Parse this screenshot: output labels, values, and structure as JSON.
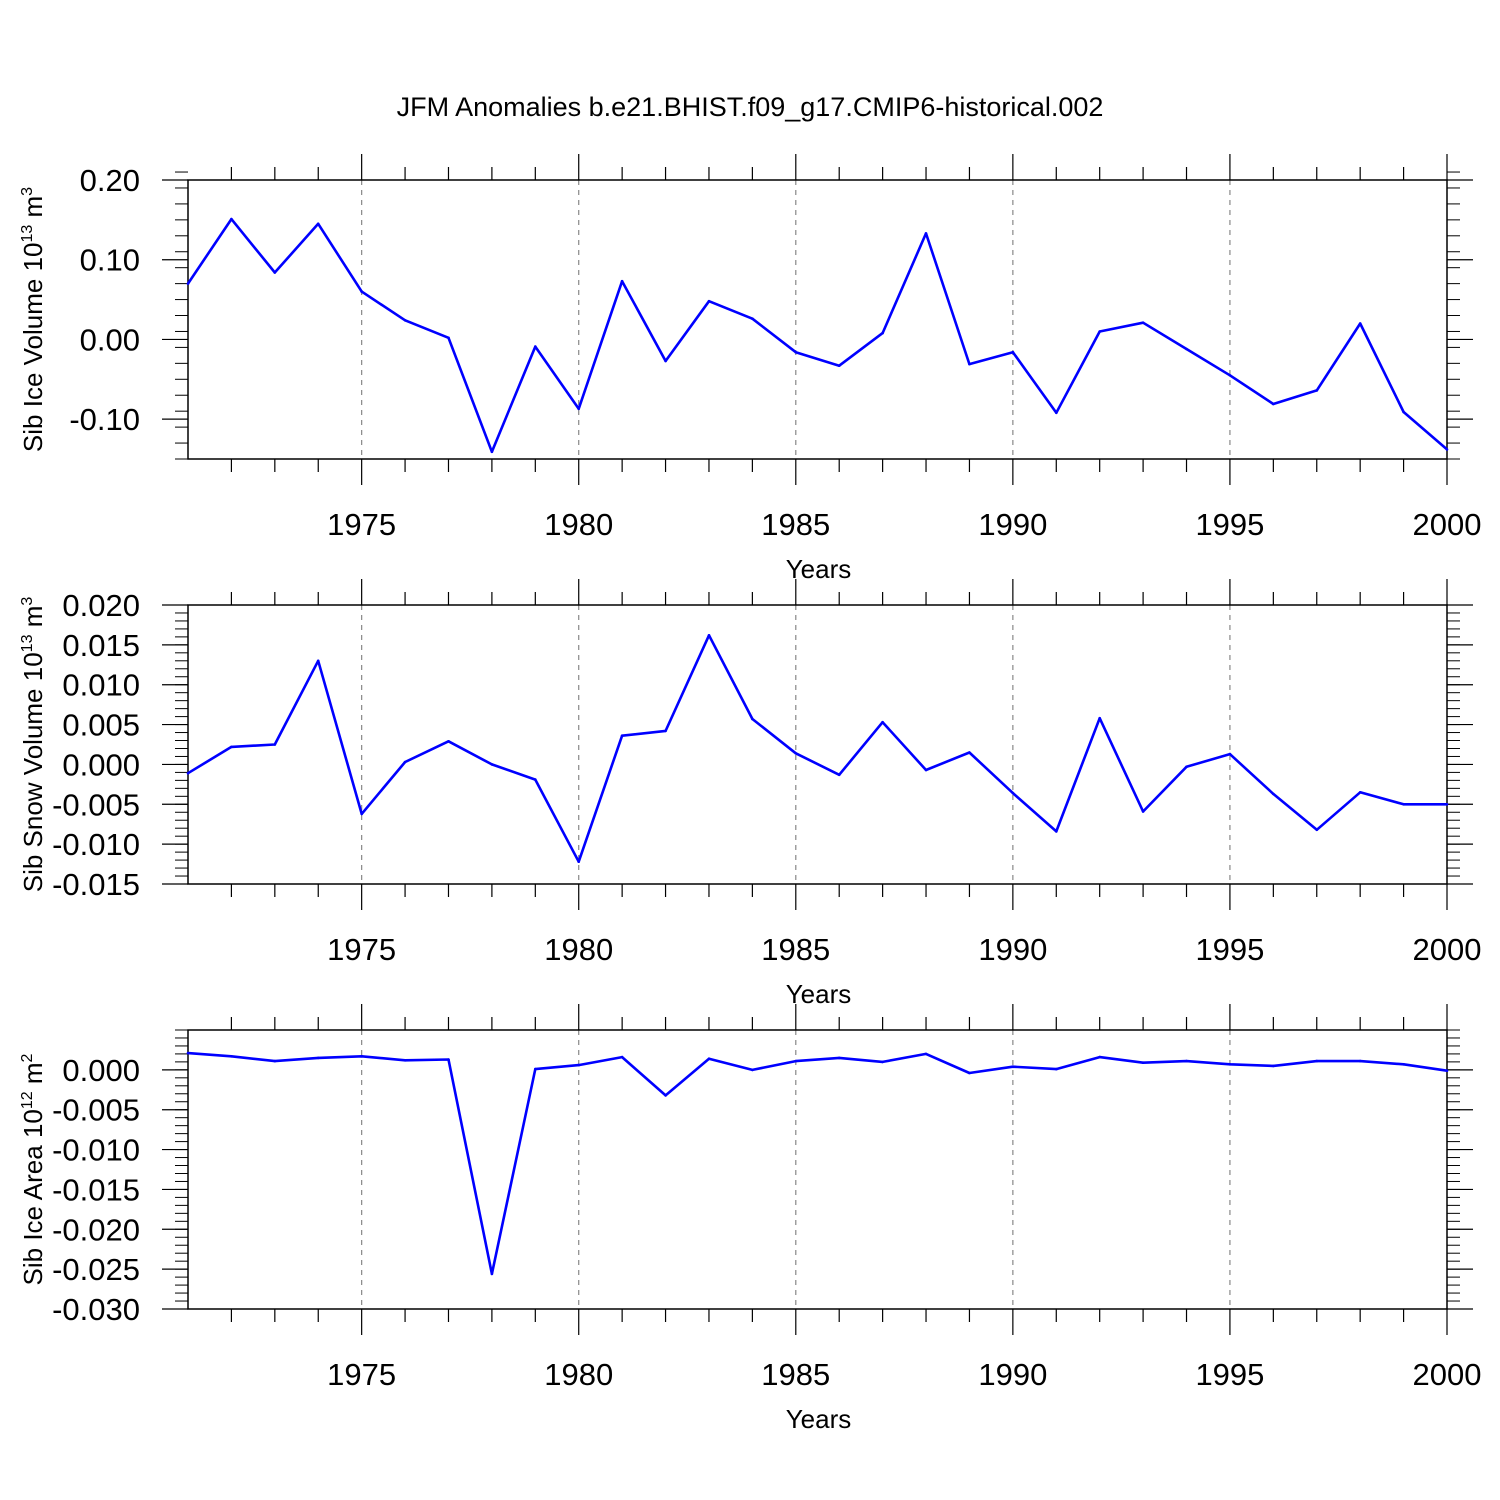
{
  "title": "JFM Anomalies b.e21.BHIST.f09_g17.CMIP6-historical.002",
  "line_color": "#0000ff",
  "chart_data": [
    {
      "type": "line",
      "ylabel": {
        "text": "Sib Ice Volume 10",
        "sup": "13",
        "unit": " m",
        "unit_sup": "3"
      },
      "xlabel": "Years",
      "xlim": [
        1971,
        2000
      ],
      "ylim": [
        -0.15,
        0.2
      ],
      "yticks": [
        -0.1,
        0.0,
        0.1,
        0.2
      ],
      "ytick_labels": [
        "-0.10",
        "0.00",
        "0.10",
        "0.20"
      ],
      "yminor_step": 0.02,
      "xticks": [
        1975,
        1980,
        1985,
        1990,
        1995,
        2000
      ],
      "xtick_labels": [
        "1975",
        "1980",
        "1985",
        "1990",
        "1995",
        "2000"
      ],
      "grid": "vertical dashed at major x ticks",
      "x": [
        1971,
        1972,
        1973,
        1974,
        1975,
        1976,
        1977,
        1978,
        1979,
        1980,
        1981,
        1982,
        1983,
        1984,
        1985,
        1986,
        1987,
        1988,
        1989,
        1990,
        1991,
        1992,
        1993,
        1994,
        1995,
        1996,
        1997,
        1998,
        1999,
        2000
      ],
      "values": [
        0.07,
        0.151,
        0.084,
        0.145,
        0.06,
        0.024,
        0.002,
        -0.141,
        -0.009,
        -0.087,
        0.073,
        -0.027,
        0.048,
        0.026,
        -0.016,
        -0.033,
        0.008,
        0.133,
        -0.031,
        -0.016,
        -0.092,
        0.01,
        0.021,
        -0.012,
        -0.045,
        -0.081,
        -0.064,
        0.02,
        -0.091,
        -0.138
      ]
    },
    {
      "type": "line",
      "ylabel": {
        "text": "Sib Snow Volume 10",
        "sup": "13",
        "unit": " m",
        "unit_sup": "3"
      },
      "xlabel": "Years",
      "xlim": [
        1971,
        2000
      ],
      "ylim": [
        -0.015,
        0.02
      ],
      "yticks": [
        -0.015,
        -0.01,
        -0.005,
        0.0,
        0.005,
        0.01,
        0.015,
        0.02
      ],
      "ytick_labels": [
        "-0.015",
        "-0.010",
        "-0.005",
        "0.000",
        "0.005",
        "0.010",
        "0.015",
        "0.020"
      ],
      "yminor_step": 0.001,
      "xticks": [
        1975,
        1980,
        1985,
        1990,
        1995,
        2000
      ],
      "xtick_labels": [
        "1975",
        "1980",
        "1985",
        "1990",
        "1995",
        "2000"
      ],
      "grid": "vertical dashed at major x ticks",
      "x": [
        1971,
        1972,
        1973,
        1974,
        1975,
        1976,
        1977,
        1978,
        1979,
        1980,
        1981,
        1982,
        1983,
        1984,
        1985,
        1986,
        1987,
        1988,
        1989,
        1990,
        1991,
        1992,
        1993,
        1994,
        1995,
        1996,
        1997,
        1998,
        1999,
        2000
      ],
      "values": [
        -0.0011,
        0.0022,
        0.0025,
        0.013,
        -0.0062,
        0.0003,
        0.0029,
        0.0,
        -0.0019,
        -0.0122,
        0.0036,
        0.0042,
        0.0162,
        0.0057,
        0.0014,
        -0.0013,
        0.0053,
        -0.0007,
        0.0015,
        -0.0036,
        -0.0084,
        0.0058,
        -0.0059,
        -0.0003,
        0.0013,
        -0.0037,
        -0.0082,
        -0.0035,
        -0.005,
        -0.005
      ]
    },
    {
      "type": "line",
      "ylabel": {
        "text": "Sib Ice Area 10",
        "sup": "12",
        "unit": " m",
        "unit_sup": "2"
      },
      "xlabel": "Years",
      "xlim": [
        1971,
        2000
      ],
      "ylim": [
        -0.03,
        0.005
      ],
      "yticks": [
        -0.03,
        -0.025,
        -0.02,
        -0.015,
        -0.01,
        -0.005,
        0.0
      ],
      "ytick_labels": [
        "-0.030",
        "-0.025",
        "-0.020",
        "-0.015",
        "-0.010",
        "-0.005",
        "0.000"
      ],
      "yminor_step": 0.001,
      "xticks": [
        1975,
        1980,
        1985,
        1990,
        1995,
        2000
      ],
      "xtick_labels": [
        "1975",
        "1980",
        "1985",
        "1990",
        "1995",
        "2000"
      ],
      "grid": "vertical dashed at major x ticks",
      "x": [
        1971,
        1972,
        1973,
        1974,
        1975,
        1976,
        1977,
        1978,
        1979,
        1980,
        1981,
        1982,
        1983,
        1984,
        1985,
        1986,
        1987,
        1988,
        1989,
        1990,
        1991,
        1992,
        1993,
        1994,
        1995,
        1996,
        1997,
        1998,
        1999,
        2000
      ],
      "values": [
        0.0021,
        0.0017,
        0.0011,
        0.0015,
        0.0017,
        0.0012,
        0.0013,
        -0.0256,
        0.0001,
        0.0006,
        0.0016,
        -0.0032,
        0.0014,
        0.0,
        0.0011,
        0.0015,
        0.001,
        0.002,
        -0.0004,
        0.0004,
        0.0001,
        0.0016,
        0.0009,
        0.0011,
        0.0007,
        0.0005,
        0.0011,
        0.0011,
        0.0007,
        -0.0001
      ]
    }
  ]
}
